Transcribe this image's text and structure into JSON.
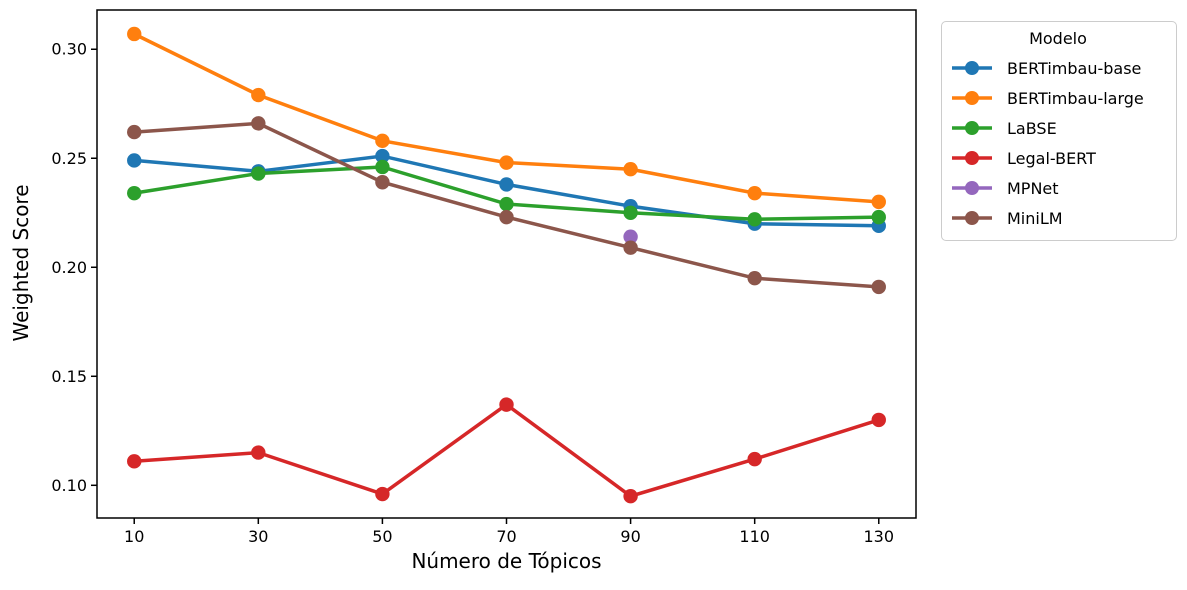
{
  "figure": {
    "background_color": "#ffffff",
    "text_color": "#000000",
    "legend_border_color": "#cccccc"
  },
  "chart_data": {
    "type": "line",
    "title": "",
    "xlabel": "Número de Tópicos",
    "ylabel": "Weighted Score",
    "legend_title": "Modelo",
    "legend_position": "outside-right",
    "grid": false,
    "x": [
      10,
      30,
      50,
      70,
      90,
      110,
      130
    ],
    "xticks": [
      10,
      30,
      50,
      70,
      90,
      110,
      130
    ],
    "yticks": [
      0.1,
      0.15,
      0.2,
      0.25,
      0.3
    ],
    "xlim": [
      4,
      136
    ],
    "ylim": [
      0.085,
      0.318
    ],
    "series": [
      {
        "name": "BERTimbau-base",
        "color": "#1f77b4",
        "values": [
          0.249,
          0.244,
          0.251,
          0.238,
          0.228,
          0.22,
          0.219
        ]
      },
      {
        "name": "BERTimbau-large",
        "color": "#ff7f0e",
        "values": [
          0.307,
          0.279,
          0.258,
          0.248,
          0.245,
          0.234,
          0.23
        ]
      },
      {
        "name": "LaBSE",
        "color": "#2ca02c",
        "values": [
          0.234,
          0.243,
          0.246,
          0.229,
          0.225,
          0.222,
          0.223
        ]
      },
      {
        "name": "Legal-BERT",
        "color": "#d62728",
        "values": [
          0.111,
          0.115,
          0.096,
          0.137,
          0.095,
          0.112,
          0.13
        ]
      },
      {
        "name": "MPNet",
        "color": "#9467bd",
        "values": [
          null,
          null,
          null,
          null,
          0.214,
          null,
          null
        ]
      },
      {
        "name": "MiniLM",
        "color": "#8c564b",
        "values": [
          0.262,
          0.266,
          0.239,
          0.223,
          0.209,
          0.195,
          0.191
        ]
      }
    ]
  }
}
